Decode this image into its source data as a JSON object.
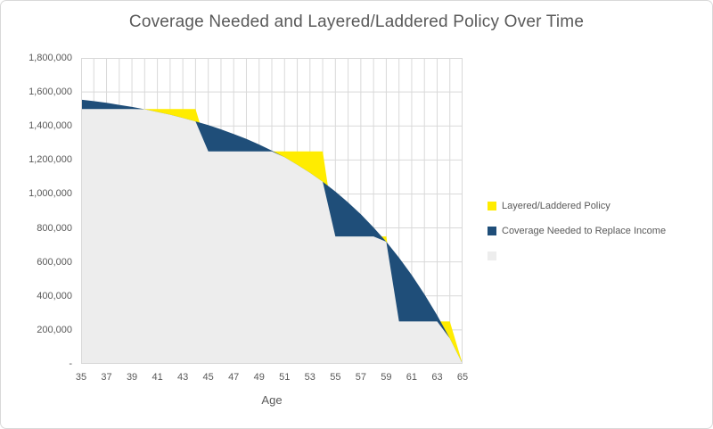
{
  "title": "Coverage Needed and Layered/Laddered Policy Over Time",
  "colors": {
    "policy": "#ffec00",
    "coverage": "#1f4e79",
    "overlap": "#ededed",
    "grid": "#d9d9d9",
    "plot_border": "#d9d9d9",
    "text": "#595959",
    "background": "#ffffff"
  },
  "axes": {
    "x_label": "Age",
    "x_ticks": [
      "35",
      "37",
      "39",
      "41",
      "43",
      "45",
      "47",
      "49",
      "51",
      "53",
      "55",
      "57",
      "59",
      "61",
      "63",
      "65"
    ],
    "y_ticks": [
      "1,800,000",
      "1,600,000",
      "1,400,000",
      "1,200,000",
      "1,000,000",
      "800,000",
      "600,000",
      "400,000",
      "200,000",
      "-"
    ]
  },
  "legend": [
    {
      "label": "Layered/Laddered Policy",
      "color": "#ffec00"
    },
    {
      "label": "Coverage Needed to Replace Income",
      "color": "#1f4e79"
    },
    {
      "label": "",
      "color": "#ededed"
    }
  ],
  "chart_data": {
    "type": "area",
    "title": "Coverage Needed and Layered/Laddered Policy Over Time",
    "xlabel": "Age",
    "ylabel": "",
    "x": [
      35,
      36,
      37,
      38,
      39,
      40,
      41,
      42,
      43,
      44,
      45,
      46,
      47,
      48,
      49,
      50,
      51,
      52,
      53,
      54,
      55,
      56,
      57,
      58,
      59,
      60,
      61,
      62,
      63,
      64,
      65
    ],
    "xlim": [
      35,
      65
    ],
    "ylim": [
      0,
      1800000
    ],
    "y_tick_step": 200000,
    "grid": true,
    "legend_position": "right",
    "series": [
      {
        "name": "Layered/Laddered Policy",
        "color": "#ffec00",
        "values": [
          1500000,
          1500000,
          1500000,
          1500000,
          1500000,
          1500000,
          1500000,
          1500000,
          1500000,
          1500000,
          1250000,
          1250000,
          1250000,
          1250000,
          1250000,
          1250000,
          1250000,
          1250000,
          1250000,
          1250000,
          750000,
          750000,
          750000,
          750000,
          750000,
          250000,
          250000,
          250000,
          250000,
          250000,
          0
        ]
      },
      {
        "name": "Coverage Needed to Replace Income",
        "color": "#1f4e79",
        "values": [
          1555000,
          1546000,
          1536000,
          1524000,
          1512000,
          1498000,
          1482000,
          1466000,
          1447000,
          1427000,
          1405000,
          1380000,
          1353000,
          1324000,
          1291000,
          1255000,
          1216000,
          1172000,
          1124000,
          1072000,
          1014000,
          950000,
          880000,
          803000,
          719000,
          625000,
          523000,
          410000,
          286000,
          150000,
          0
        ]
      },
      {
        "name": "",
        "color": "#ededed",
        "values": [
          1500000,
          1500000,
          1500000,
          1500000,
          1500000,
          1498000,
          1482000,
          1466000,
          1447000,
          1427000,
          1250000,
          1250000,
          1250000,
          1250000,
          1250000,
          1250000,
          1216000,
          1172000,
          1124000,
          1072000,
          750000,
          750000,
          750000,
          750000,
          719000,
          250000,
          250000,
          250000,
          250000,
          150000,
          0
        ]
      }
    ]
  }
}
